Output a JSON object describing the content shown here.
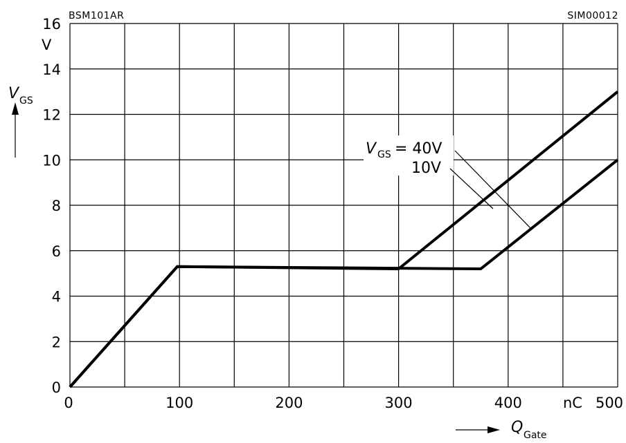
{
  "header_left": "BSM101AR",
  "header_right": "SIM00012",
  "chart_data": {
    "type": "line",
    "x_unit": "nC",
    "y_unit": "V",
    "xlim": [
      0,
      500
    ],
    "ylim": [
      0,
      16
    ],
    "x_ticks": [
      0,
      100,
      200,
      300,
      400,
      500
    ],
    "y_ticks": [
      0,
      2,
      4,
      6,
      8,
      10,
      12,
      14,
      16
    ],
    "x_ticks_labeled": [
      "0",
      "100",
      "200",
      "300",
      "400",
      "500"
    ],
    "y_ticks_labeled": [
      "0",
      "2",
      "4",
      "6",
      "8",
      "10",
      "12",
      "14",
      "16"
    ],
    "grid": true,
    "xlabel_symbol": "Q",
    "xlabel_subscript": "Gate",
    "ylabel_symbol": "V",
    "ylabel_subscript": "GS",
    "series": [
      {
        "name": "40V",
        "points": [
          [
            0,
            0
          ],
          [
            98,
            5.3
          ],
          [
            300,
            5.2
          ],
          [
            500,
            13
          ]
        ]
      },
      {
        "name": "10V",
        "points": [
          [
            0,
            0
          ],
          [
            98,
            5.3
          ],
          [
            375,
            5.2
          ],
          [
            500,
            10
          ]
        ]
      }
    ],
    "annotation": {
      "symbol": "V",
      "subscript": "GS",
      "eq": "= 40V",
      "second": "10V"
    }
  }
}
